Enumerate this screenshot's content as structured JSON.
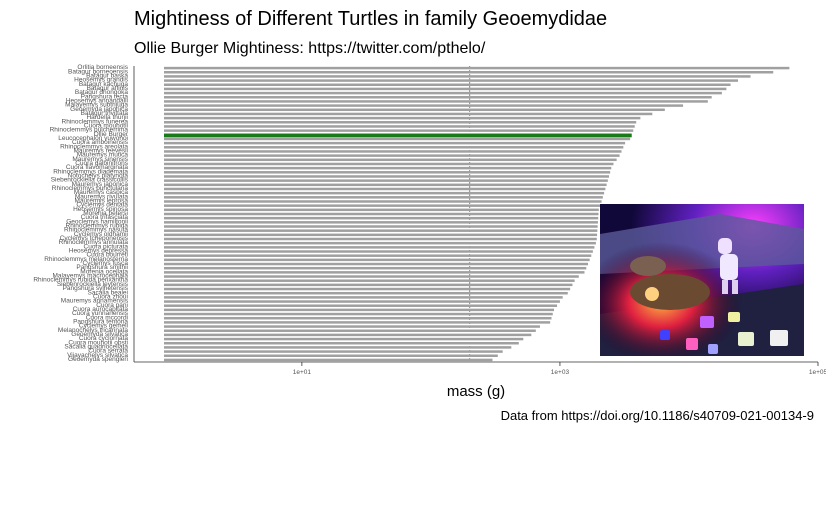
{
  "title": "Mightiness of Different Turtles in family Geoemydidae",
  "subtitle": "Ollie Burger Mightiness: https://twitter.com/pthelo/",
  "caption": "Data from https://doi.org/10.1186/s40709-021-00134-9",
  "photo": {
    "description_icon": "ollie-burger-photo-icon"
  },
  "chart_data": {
    "type": "bar",
    "orientation": "horizontal",
    "xlabel": "mass (g)",
    "ylabel": "",
    "x_scale": "log10",
    "xlim": [
      0.5,
      100000
    ],
    "xticks": [
      10,
      1000,
      100000
    ],
    "xtick_labels": [
      "1e+01",
      "1e+03",
      "1e+05"
    ],
    "reference_line": 200,
    "bar_color": "#a0a0a0",
    "highlight_color": "#1a7a1a",
    "highlight_label": "Ollie Burger",
    "categories": [
      "Orlitia borneensis",
      "Batagur borneoensis",
      "Batagur baska",
      "Heosemys grandis",
      "Batagur kachuga",
      "Batagur affinis",
      "Batagur dhongoka",
      "Pangshura tecta",
      "Heosemys annandalii",
      "Malayemys subtrijuga",
      "Geoemyda japonica",
      "Batagur trivittata",
      "Hardella thurjii",
      "Rhinoclemmys funerea",
      "Cuora mouhotii",
      "Rhinoclemmys pulcherrima",
      "Ollie Burger",
      "Leucocephalon yuwonoi",
      "Cuora amboinensis",
      "Rhinoclemmys areolata",
      "Mauremys reevesii",
      "Mauremys mutica",
      "Mauremys sinensis",
      "Cuora galbinifrons",
      "Cuora flavomarginata",
      "Rhinoclemmys diademata",
      "Notochelys platynota",
      "Siebenrockiella crassicollis",
      "Mauremys japonica",
      "Rhinoclemmys punctularia",
      "Mauremys caspica",
      "Mauremys rivulata",
      "Mauremys leprosa",
      "Cyclemys dentata",
      "Heosemys spinosa",
      "Morenia petersi",
      "Cuora trifasciata",
      "Geoclemys hamiltonii",
      "Rhinoclemmys rubida",
      "Rhinoclemmys nasuta",
      "Cyclemys oldhamii",
      "Cyclemys tcheponensis",
      "Rhinoclemmys annulata",
      "Cuora picturata",
      "Heosemys depressa",
      "Cuora bourreti",
      "Rhinoclemmys melanosterna",
      "Cyclemys fusca",
      "Pangshura smithii",
      "Morenia ocellata",
      "Malayemys macrocephala",
      "Rhinoclemmys rubida perixantha",
      "Siebenrockiella leytensis",
      "Pangshura sylhetensis",
      "Sacalia bealei",
      "Cuora zhoui",
      "Mauremys annamensis",
      "Cuora pani",
      "Cuora aurocapitata",
      "Cuora yunnanensis",
      "Cuora mccordi",
      "Pangshura tentoria",
      "Cyclemys gemeli",
      "Melanochelys tricarinata",
      "Geoemyda silvatica",
      "Cuora cyclornata",
      "Cuora mouhotii obsti",
      "Sacalia quadriocellata",
      "Cuora serrata",
      "Vijayachelys silvatica",
      "Geoemyda spengleri"
    ],
    "values": [
      60000,
      45000,
      30000,
      24000,
      21000,
      19500,
      18000,
      15000,
      14000,
      9000,
      6500,
      5200,
      4200,
      3900,
      3800,
      3700,
      3600,
      3500,
      3200,
      3100,
      3000,
      2900,
      2750,
      2600,
      2500,
      2450,
      2400,
      2350,
      2300,
      2250,
      2200,
      2150,
      2100,
      2050,
      2000,
      1990,
      1980,
      1970,
      1960,
      1950,
      1940,
      1930,
      1900,
      1850,
      1800,
      1750,
      1700,
      1650,
      1600,
      1550,
      1400,
      1300,
      1250,
      1200,
      1150,
      1050,
      1000,
      950,
      900,
      880,
      860,
      840,
      700,
      650,
      600,
      520,
      480,
      420,
      360,
      330,
      300
    ]
  }
}
